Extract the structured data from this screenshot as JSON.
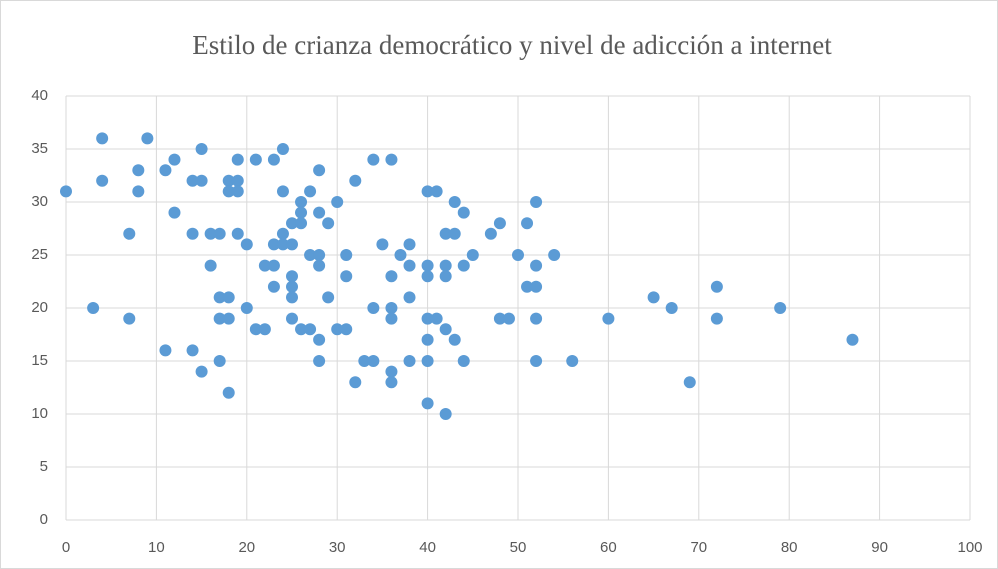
{
  "chart_data": {
    "type": "scatter",
    "title": "Estilo de crianza democrático y nivel de adicción a internet",
    "color": "#5b9bd5",
    "grid": true,
    "xlim": [
      0,
      100
    ],
    "xticks": [
      0,
      10,
      20,
      30,
      40,
      50,
      60,
      70,
      80,
      90,
      100
    ],
    "ylim": [
      0,
      40
    ],
    "yticks": [
      0,
      5,
      10,
      15,
      20,
      25,
      30,
      35,
      40
    ],
    "x": [
      0,
      3,
      4,
      4,
      7,
      7,
      8,
      8,
      9,
      11,
      11,
      12,
      12,
      14,
      14,
      14,
      15,
      15,
      15,
      16,
      16,
      17,
      17,
      17,
      17,
      18,
      18,
      18,
      18,
      18,
      19,
      19,
      19,
      19,
      20,
      20,
      21,
      21,
      22,
      22,
      23,
      23,
      23,
      23,
      24,
      24,
      24,
      24,
      25,
      25,
      25,
      25,
      25,
      25,
      26,
      26,
      26,
      26,
      27,
      27,
      27,
      28,
      28,
      28,
      28,
      28,
      28,
      29,
      29,
      30,
      30,
      31,
      31,
      31,
      32,
      32,
      33,
      34,
      34,
      34,
      35,
      36,
      36,
      36,
      36,
      36,
      36,
      37,
      38,
      38,
      38,
      38,
      40,
      40,
      40,
      40,
      40,
      40,
      40,
      41,
      41,
      42,
      42,
      42,
      42,
      42,
      43,
      43,
      43,
      44,
      44,
      44,
      45,
      47,
      48,
      48,
      49,
      50,
      51,
      51,
      52,
      52,
      52,
      52,
      52,
      54,
      56,
      60,
      65,
      67,
      69,
      72,
      72,
      79,
      87
    ],
    "y": [
      31,
      20,
      36,
      32,
      27,
      19,
      33,
      31,
      36,
      33,
      16,
      34,
      29,
      32,
      27,
      16,
      35,
      32,
      14,
      27,
      24,
      27,
      21,
      19,
      15,
      32,
      31,
      21,
      19,
      12,
      34,
      32,
      31,
      27,
      26,
      20,
      34,
      18,
      24,
      18,
      34,
      26,
      24,
      22,
      35,
      31,
      27,
      26,
      28,
      26,
      23,
      22,
      21,
      19,
      30,
      29,
      28,
      18,
      31,
      25,
      18,
      33,
      29,
      25,
      24,
      17,
      15,
      28,
      21,
      30,
      18,
      25,
      23,
      18,
      32,
      13,
      15,
      34,
      20,
      15,
      26,
      34,
      23,
      20,
      19,
      14,
      13,
      25,
      26,
      24,
      21,
      15,
      31,
      24,
      23,
      19,
      17,
      15,
      11,
      31,
      19,
      27,
      24,
      23,
      18,
      10,
      30,
      27,
      17,
      29,
      24,
      15,
      25,
      27,
      28,
      19,
      19,
      25,
      28,
      22,
      30,
      24,
      22,
      19,
      15,
      25,
      15,
      19,
      21,
      20,
      13,
      22,
      19,
      20,
      17
    ]
  }
}
